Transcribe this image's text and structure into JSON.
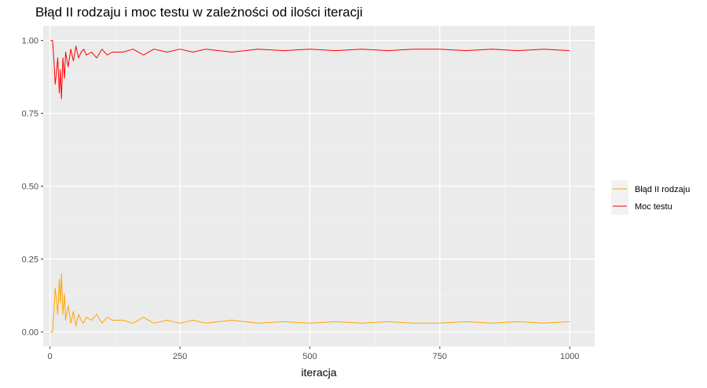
{
  "chart_data": {
    "type": "line",
    "title": "Błąd II rodzaju i moc testu w zależności od ilości iteracji",
    "xlabel": "iteracja",
    "ylabel": "",
    "xlim": [
      -13,
      1048
    ],
    "ylim": [
      -0.05,
      1.05
    ],
    "x_ticks": [
      0,
      250,
      500,
      750,
      1000
    ],
    "x_tick_labels": [
      "0",
      "250",
      "500",
      "750",
      "1000"
    ],
    "y_ticks": [
      0.0,
      0.25,
      0.5,
      0.75,
      1.0
    ],
    "y_tick_labels": [
      "0.00",
      "0.25",
      "0.50",
      "0.75",
      "1.00"
    ],
    "grid": true,
    "legend_position": "right",
    "colors": {
      "panel_background": "#EBEBEB",
      "grid_major": "#FFFFFF",
      "grid_minor": "#F5F5F5"
    },
    "series": [
      {
        "name": "Błąd II rodzaju",
        "color": "#FFA500",
        "x": [
          1,
          5,
          8,
          10,
          12,
          15,
          18,
          20,
          22,
          25,
          28,
          30,
          35,
          40,
          45,
          50,
          55,
          60,
          65,
          70,
          80,
          90,
          100,
          110,
          120,
          140,
          160,
          180,
          200,
          225,
          250,
          275,
          300,
          350,
          400,
          450,
          500,
          550,
          600,
          650,
          700,
          750,
          800,
          850,
          900,
          950,
          1000
        ],
        "values": [
          0.0,
          0.0,
          0.08,
          0.15,
          0.12,
          0.06,
          0.18,
          0.1,
          0.2,
          0.06,
          0.13,
          0.04,
          0.09,
          0.03,
          0.07,
          0.02,
          0.06,
          0.04,
          0.03,
          0.05,
          0.04,
          0.06,
          0.03,
          0.05,
          0.04,
          0.04,
          0.03,
          0.05,
          0.03,
          0.04,
          0.03,
          0.04,
          0.03,
          0.04,
          0.03,
          0.035,
          0.03,
          0.035,
          0.03,
          0.035,
          0.03,
          0.03,
          0.035,
          0.03,
          0.035,
          0.03,
          0.035
        ]
      },
      {
        "name": "Moc testu",
        "color": "#FF0000",
        "x": [
          1,
          5,
          8,
          10,
          12,
          15,
          18,
          20,
          22,
          25,
          28,
          30,
          35,
          40,
          45,
          50,
          55,
          60,
          65,
          70,
          80,
          90,
          100,
          110,
          120,
          140,
          160,
          180,
          200,
          225,
          250,
          275,
          300,
          350,
          400,
          450,
          500,
          550,
          600,
          650,
          700,
          750,
          800,
          850,
          900,
          950,
          1000
        ],
        "values": [
          1.0,
          1.0,
          0.92,
          0.85,
          0.88,
          0.94,
          0.82,
          0.9,
          0.8,
          0.94,
          0.87,
          0.96,
          0.91,
          0.97,
          0.93,
          0.98,
          0.94,
          0.96,
          0.97,
          0.95,
          0.96,
          0.94,
          0.97,
          0.95,
          0.96,
          0.96,
          0.97,
          0.95,
          0.97,
          0.96,
          0.97,
          0.96,
          0.97,
          0.96,
          0.97,
          0.965,
          0.97,
          0.965,
          0.97,
          0.965,
          0.97,
          0.97,
          0.965,
          0.97,
          0.965,
          0.97,
          0.965
        ]
      }
    ]
  }
}
